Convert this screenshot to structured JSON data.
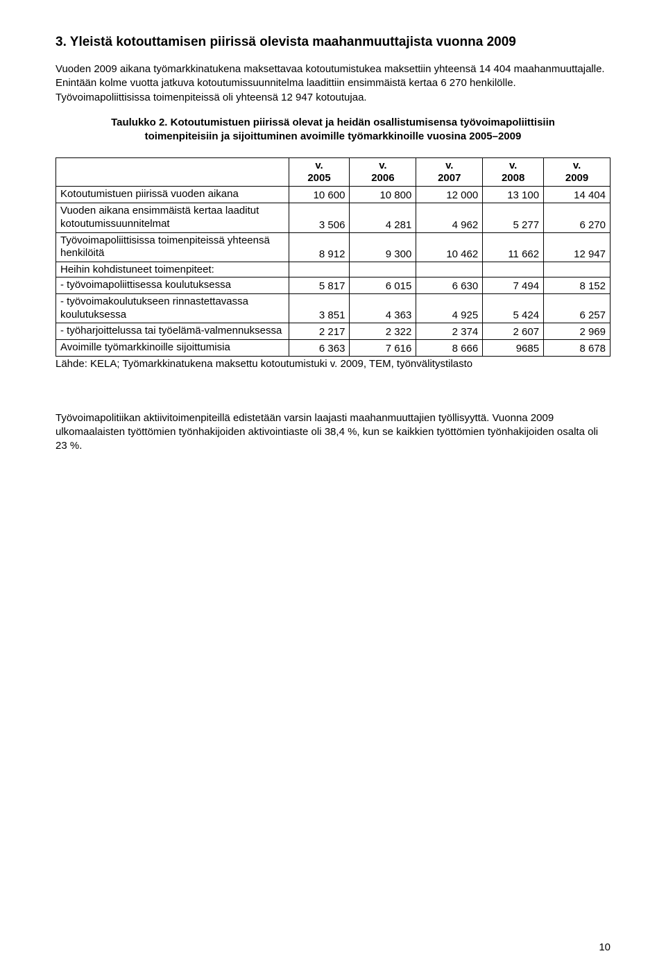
{
  "heading": "3. Yleistä kotouttamisen piirissä olevista maahanmuuttajista vuonna 2009",
  "para1": "Vuoden 2009 aikana työmarkkinatukena maksettavaa kotoutumistukea maksettiin yhteensä 14 404 maahanmuuttajalle. Enintään kolme vuotta jatkuva kotoutumissuunnitelma laadittiin ensimmäistä kertaa 6 270 henkilölle. Työvoimapoliittisissa toimenpiteissä oli yhteensä 12 947 kotoutujaa.",
  "table_caption": "Taulukko 2. Kotoutumistuen piirissä olevat ja heidän osallistumisensa työvoimapoliittisiin toimenpiteisiin ja sijoittuminen avoimille työmarkkinoille vuosina 2005–2009",
  "table": {
    "col_headers": [
      "v. 2005",
      "v. 2006",
      "v. 2007",
      "v. 2008",
      "v. 2009"
    ],
    "col_widths": [
      "42%",
      "11%",
      "12%",
      "12%",
      "11%",
      "12%"
    ],
    "rows": [
      {
        "label": "Kotoutumistuen piirissä vuoden aikana",
        "values": [
          "10 600",
          "10 800",
          "12 000",
          "13 100",
          "14 404"
        ]
      },
      {
        "label": "Vuoden aikana ensimmäistä kertaa laaditut kotoutumissuunnitelmat",
        "values": [
          "3 506",
          "4 281",
          "4 962",
          "5 277",
          "6 270"
        ]
      },
      {
        "label": "Työvoimapoliittisissa toimenpiteissä yhteensä henkilöitä",
        "values": [
          "8 912",
          "9 300",
          "10 462",
          "11 662",
          "12 947"
        ]
      },
      {
        "label": "Heihin kohdistuneet toimenpiteet:",
        "values": [
          "",
          "",
          "",
          "",
          ""
        ],
        "section": true
      },
      {
        "label": "- työvoimapoliittisessa koulutuksessa",
        "values": [
          "5 817",
          "6 015",
          "6 630",
          "7 494",
          "8 152"
        ]
      },
      {
        "label": "- työvoimakoulutukseen rinnastettavassa koulutuksessa",
        "values": [
          "3 851",
          "4 363",
          "4 925",
          "5 424",
          "6 257"
        ]
      },
      {
        "label": "- työharjoittelussa tai työelämä-valmennuksessa",
        "values": [
          "2 217",
          "2 322",
          "2 374",
          "2 607",
          "2 969"
        ]
      },
      {
        "label": "Avoimille työmarkkinoille sijoittumisia",
        "values": [
          "6 363",
          "7 616",
          "8 666",
          "9685",
          "8 678"
        ]
      }
    ]
  },
  "source_line": "Lähde: KELA; Työmarkkinatukena maksettu kotoutumistuki v. 2009, TEM, työnvälitystilasto",
  "para2": "Työvoimapolitiikan aktiivitoimenpiteillä edistetään varsin laajasti maahanmuuttajien työllisyyttä.  Vuonna 2009 ulkomaalaisten työttömien työnhakijoiden aktivointiaste oli 38,4 %, kun se kaikkien työttömien työnhakijoiden osalta oli 23 %.",
  "page_number": "10"
}
